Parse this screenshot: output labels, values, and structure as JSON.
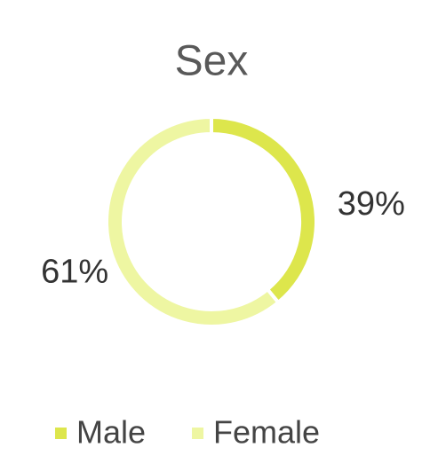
{
  "chart_data": {
    "type": "donut",
    "title": "Sex",
    "categories": [
      "Male",
      "Female"
    ],
    "values": [
      39,
      61
    ],
    "value_labels": [
      "39%",
      "61%"
    ],
    "colors": [
      "#dde64c",
      "#eef6a2"
    ],
    "legend": "bottom"
  }
}
